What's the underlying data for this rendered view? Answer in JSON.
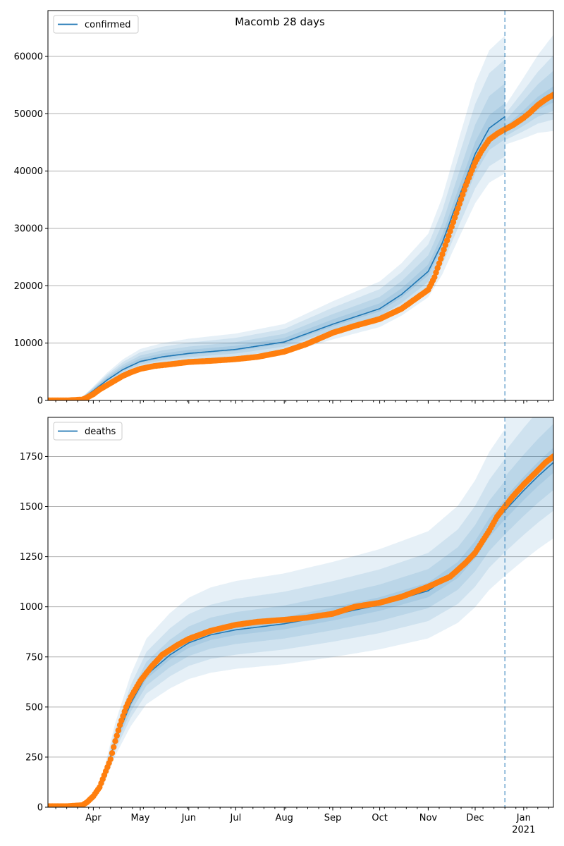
{
  "title": "Macomb 28 days",
  "colors": {
    "model": "#1f77b4",
    "observed": "#ff7f0e",
    "band": "#1f77b4",
    "grid": "#b0b0b0",
    "vline": "#1f77b4"
  },
  "x_axis": {
    "month_labels": [
      "Apr",
      "May",
      "Jun",
      "Jul",
      "Aug",
      "Sep",
      "Oct",
      "Nov",
      "Dec",
      "Jan"
    ],
    "year_label": "2021"
  },
  "chart_data": [
    {
      "type": "line",
      "legend": "confirmed",
      "legend_position": "top-left",
      "grid": "horizontal",
      "ylim": [
        0,
        68000
      ],
      "yticks": [
        0,
        10000,
        20000,
        30000,
        40000,
        50000,
        60000
      ],
      "ytick_labels": [
        "0",
        "10000",
        "20000",
        "30000",
        "40000",
        "50000",
        "60000"
      ],
      "xlim": [
        "2020-03-03",
        "2021-01-20"
      ],
      "forecast_start": "2020-12-20",
      "model_median": [
        [
          "2020-03-03",
          0
        ],
        [
          "2020-03-20",
          50
        ],
        [
          "2020-03-25",
          300
        ],
        [
          "2020-04-01",
          1700
        ],
        [
          "2020-04-10",
          3600
        ],
        [
          "2020-04-20",
          5400
        ],
        [
          "2020-05-01",
          6800
        ],
        [
          "2020-05-15",
          7600
        ],
        [
          "2020-06-01",
          8200
        ],
        [
          "2020-07-01",
          8900
        ],
        [
          "2020-08-01",
          10200
        ],
        [
          "2020-09-01",
          13300
        ],
        [
          "2020-10-01",
          16000
        ],
        [
          "2020-10-15",
          18500
        ],
        [
          "2020-11-01",
          22500
        ],
        [
          "2020-11-10",
          27500
        ],
        [
          "2020-11-20",
          35000
        ],
        [
          "2020-12-01",
          43000
        ],
        [
          "2020-12-10",
          47500
        ],
        [
          "2020-12-20",
          49500
        ]
      ],
      "model_forecast": [
        [
          "2020-12-20",
          47000
        ],
        [
          "2021-01-01",
          49500
        ],
        [
          "2021-01-10",
          51500
        ],
        [
          "2021-01-20",
          53000
        ]
      ],
      "band_fracs": [
        0.03,
        0.08,
        0.14,
        0.2
      ],
      "band_forecast_spread": [
        1000,
        2500,
        4000,
        6000
      ],
      "observed": [
        [
          "2020-03-03",
          0
        ],
        [
          "2020-03-15",
          0
        ],
        [
          "2020-03-25",
          150
        ],
        [
          "2020-03-28",
          500
        ],
        [
          "2020-04-01",
          1100
        ],
        [
          "2020-04-05",
          1900
        ],
        [
          "2020-04-10",
          2700
        ],
        [
          "2020-04-15",
          3500
        ],
        [
          "2020-04-20",
          4300
        ],
        [
          "2020-04-25",
          4900
        ],
        [
          "2020-05-01",
          5500
        ],
        [
          "2020-05-10",
          6000
        ],
        [
          "2020-05-20",
          6300
        ],
        [
          "2020-06-01",
          6700
        ],
        [
          "2020-06-15",
          6900
        ],
        [
          "2020-07-01",
          7200
        ],
        [
          "2020-07-15",
          7600
        ],
        [
          "2020-08-01",
          8500
        ],
        [
          "2020-08-15",
          9800
        ],
        [
          "2020-09-01",
          11800
        ],
        [
          "2020-09-15",
          13000
        ],
        [
          "2020-10-01",
          14200
        ],
        [
          "2020-10-15",
          16000
        ],
        [
          "2020-11-01",
          19300
        ],
        [
          "2020-11-05",
          21500
        ],
        [
          "2020-11-10",
          25500
        ],
        [
          "2020-11-15",
          29500
        ],
        [
          "2020-11-20",
          33500
        ],
        [
          "2020-11-25",
          37500
        ],
        [
          "2020-12-01",
          41500
        ],
        [
          "2020-12-05",
          43500
        ],
        [
          "2020-12-10",
          45500
        ],
        [
          "2020-12-15",
          46500
        ],
        [
          "2020-12-20",
          47300
        ],
        [
          "2020-12-25",
          48000
        ],
        [
          "2021-01-01",
          49300
        ],
        [
          "2021-01-05",
          50200
        ],
        [
          "2021-01-10",
          51500
        ],
        [
          "2021-01-15",
          52500
        ],
        [
          "2021-01-20",
          53300
        ]
      ]
    },
    {
      "type": "line",
      "legend": "deaths",
      "legend_position": "top-left",
      "grid": "horizontal",
      "ylim": [
        0,
        1945
      ],
      "yticks": [
        0,
        250,
        500,
        750,
        1000,
        1250,
        1500,
        1750
      ],
      "ytick_labels": [
        "0",
        "250",
        "500",
        "750",
        "1000",
        "1250",
        "1500",
        "1750"
      ],
      "xlim": [
        "2020-03-03",
        "2021-01-20"
      ],
      "forecast_start": "2020-12-20",
      "model_median": [
        [
          "2020-03-03",
          0
        ],
        [
          "2020-03-25",
          5
        ],
        [
          "2020-04-01",
          40
        ],
        [
          "2020-04-08",
          150
        ],
        [
          "2020-04-15",
          330
        ],
        [
          "2020-04-25",
          520
        ],
        [
          "2020-05-05",
          660
        ],
        [
          "2020-05-20",
          760
        ],
        [
          "2020-06-01",
          820
        ],
        [
          "2020-06-15",
          860
        ],
        [
          "2020-07-01",
          885
        ],
        [
          "2020-08-01",
          915
        ],
        [
          "2020-09-01",
          960
        ],
        [
          "2020-10-01",
          1010
        ],
        [
          "2020-11-01",
          1080
        ],
        [
          "2020-11-20",
          1180
        ],
        [
          "2020-12-01",
          1280
        ],
        [
          "2020-12-10",
          1390
        ],
        [
          "2020-12-20",
          1480
        ],
        [
          "2021-01-01",
          1580
        ],
        [
          "2021-01-10",
          1650
        ],
        [
          "2021-01-20",
          1720
        ]
      ],
      "band_fracs": [
        0.03,
        0.08,
        0.14,
        0.22
      ],
      "band_forecast_spread": [
        30,
        70,
        120,
        180
      ],
      "observed": [
        [
          "2020-03-03",
          5
        ],
        [
          "2020-03-15",
          5
        ],
        [
          "2020-03-25",
          10
        ],
        [
          "2020-03-28",
          25
        ],
        [
          "2020-04-01",
          55
        ],
        [
          "2020-04-05",
          100
        ],
        [
          "2020-04-08",
          160
        ],
        [
          "2020-04-12",
          240
        ],
        [
          "2020-04-15",
          330
        ],
        [
          "2020-04-18",
          410
        ],
        [
          "2020-04-22",
          500
        ],
        [
          "2020-04-25",
          550
        ],
        [
          "2020-05-01",
          630
        ],
        [
          "2020-05-08",
          700
        ],
        [
          "2020-05-15",
          760
        ],
        [
          "2020-05-25",
          810
        ],
        [
          "2020-06-01",
          840
        ],
        [
          "2020-06-15",
          880
        ],
        [
          "2020-07-01",
          910
        ],
        [
          "2020-07-15",
          925
        ],
        [
          "2020-08-01",
          935
        ],
        [
          "2020-08-15",
          945
        ],
        [
          "2020-09-01",
          965
        ],
        [
          "2020-09-15",
          1000
        ],
        [
          "2020-10-01",
          1020
        ],
        [
          "2020-10-15",
          1050
        ],
        [
          "2020-11-01",
          1100
        ],
        [
          "2020-11-15",
          1150
        ],
        [
          "2020-11-25",
          1220
        ],
        [
          "2020-12-01",
          1270
        ],
        [
          "2020-12-10",
          1380
        ],
        [
          "2020-12-15",
          1450
        ],
        [
          "2020-12-20",
          1500
        ],
        [
          "2020-12-25",
          1550
        ],
        [
          "2021-01-01",
          1610
        ],
        [
          "2021-01-10",
          1680
        ],
        [
          "2021-01-15",
          1720
        ],
        [
          "2021-01-20",
          1750
        ]
      ]
    }
  ]
}
